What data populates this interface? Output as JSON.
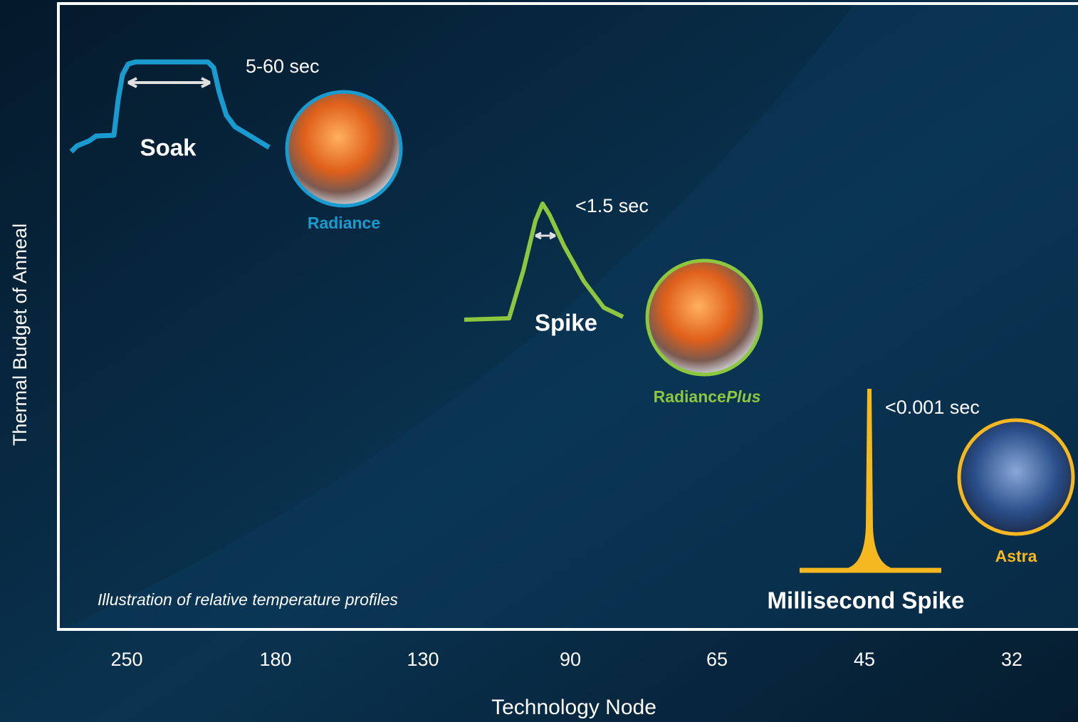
{
  "y_axis_label": "Thermal Budget of Anneal",
  "x_axis_label": "Technology Node",
  "x_ticks": [
    "250",
    "180",
    "130",
    "90",
    "65",
    "45",
    "32"
  ],
  "note": "Illustration of relative temperature profiles",
  "profiles": [
    {
      "label": "Soak",
      "duration": "5-60 sec",
      "product": [
        "Radiance"
      ]
    },
    {
      "label": "Spike",
      "duration": "<1.5 sec",
      "product": [
        "Radiance",
        "Plus"
      ]
    },
    {
      "label": "Millisecond Spike",
      "duration": "<0.001 sec",
      "product": [
        "Astra"
      ]
    }
  ]
}
